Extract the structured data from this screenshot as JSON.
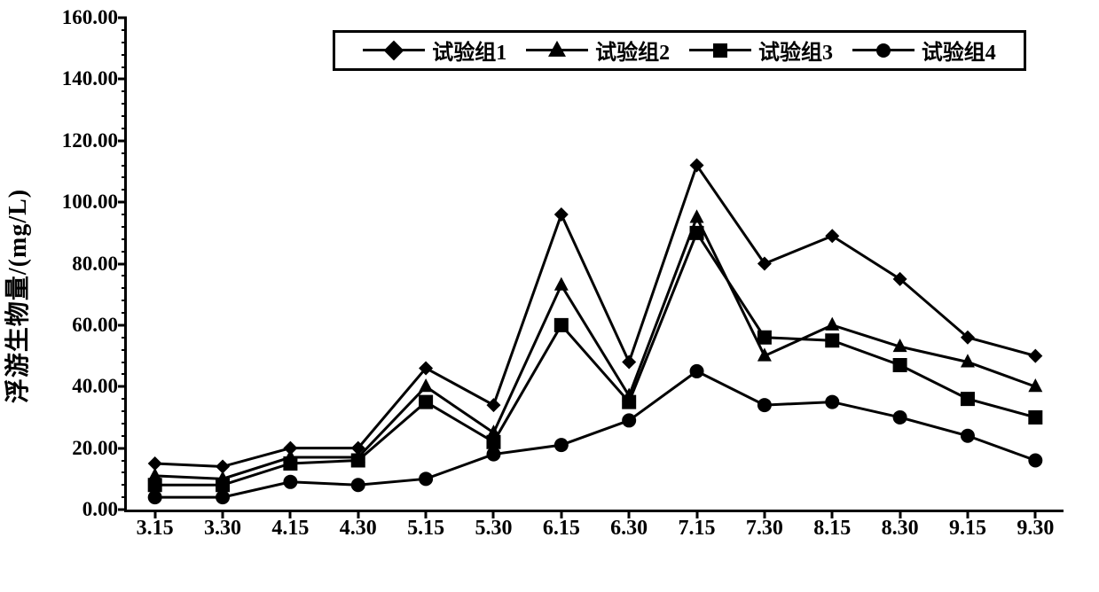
{
  "chart": {
    "type": "line",
    "ylabel": "浮游生物量/(mg/L)",
    "xlabel": "",
    "background_color": "#ffffff",
    "axis_color": "#000000",
    "axis_width": 3,
    "xlim": [
      0,
      13
    ],
    "ylim": [
      0,
      160
    ],
    "ytick_step": 20,
    "ytick_minor_step": 4,
    "ytick_decimals": 2,
    "xtick_labels": [
      "3.15",
      "3.30",
      "4.15",
      "4.30",
      "5.15",
      "5.30",
      "6.15",
      "6.30",
      "7.15",
      "7.30",
      "8.15",
      "8.30",
      "9.15",
      "9.30"
    ],
    "label_fontsize": 23,
    "ylabel_fontsize": 28,
    "line_color": "#000000",
    "line_width": 3,
    "marker_size": 16,
    "legend": {
      "position": "top-inside",
      "border_color": "#000000",
      "border_width": 3,
      "items": [
        {
          "label": "试验组1",
          "marker": "diamond"
        },
        {
          "label": "试验组2",
          "marker": "triangle"
        },
        {
          "label": "试验组3",
          "marker": "square"
        },
        {
          "label": "试验组4",
          "marker": "circle"
        }
      ]
    },
    "series": [
      {
        "name": "试验组1",
        "marker": "diamond",
        "values": [
          15,
          14,
          20,
          20,
          46,
          34,
          96,
          48,
          112,
          80,
          89,
          75,
          56,
          50
        ]
      },
      {
        "name": "试验组2",
        "marker": "triangle",
        "values": [
          11,
          10,
          17,
          17,
          40,
          25,
          73,
          37,
          95,
          50,
          60,
          53,
          48,
          40
        ]
      },
      {
        "name": "试验组3",
        "marker": "square",
        "values": [
          8,
          8,
          15,
          16,
          35,
          22,
          60,
          35,
          90,
          56,
          55,
          47,
          36,
          30
        ]
      },
      {
        "name": "试验组4",
        "marker": "circle",
        "values": [
          4,
          4,
          9,
          8,
          10,
          18,
          21,
          29,
          45,
          34,
          35,
          30,
          24,
          16
        ]
      }
    ]
  }
}
